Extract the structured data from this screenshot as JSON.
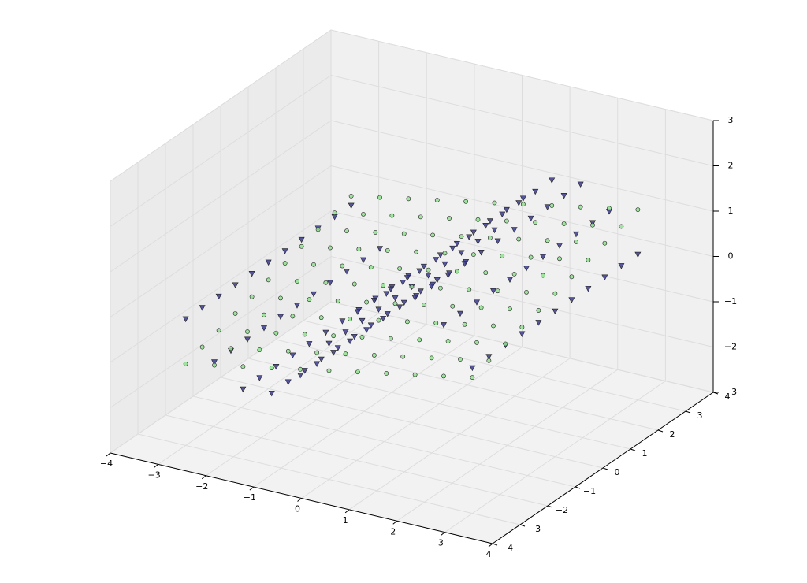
{
  "chart_data": {
    "type": "scatter3d",
    "xlim": [
      -4,
      4
    ],
    "ylim": [
      -4,
      4
    ],
    "zlim": [
      -3,
      3
    ],
    "xticks": [
      {
        "value": -4,
        "label": "−4"
      },
      {
        "value": -3,
        "label": "−3"
      },
      {
        "value": -2,
        "label": "−2"
      },
      {
        "value": -1,
        "label": "−1"
      },
      0,
      1,
      2,
      3,
      4
    ],
    "yticks": [
      {
        "value": -4,
        "label": "−4"
      },
      {
        "value": -3,
        "label": "−3"
      },
      {
        "value": -2,
        "label": "−2"
      },
      {
        "value": -1,
        "label": "−1"
      },
      0,
      1,
      2,
      3,
      4
    ],
    "zticks": [
      {
        "value": -3,
        "label": "−3"
      },
      {
        "value": -2,
        "label": "−2"
      },
      {
        "value": -1,
        "label": "−1"
      },
      0,
      1,
      2,
      3
    ],
    "grid": true,
    "x": [
      -3,
      -3,
      -3,
      -3,
      -3,
      -3,
      -3,
      -3,
      -3,
      -3,
      -3,
      -2.4,
      -2.4,
      -2.4,
      -2.4,
      -2.4,
      -2.4,
      -2.4,
      -2.4,
      -2.4,
      -2.4,
      -2.4,
      -1.8,
      -1.8,
      -1.8,
      -1.8,
      -1.8,
      -1.8,
      -1.8,
      -1.8,
      -1.8,
      -1.8,
      -1.8,
      -1.2,
      -1.2,
      -1.2,
      -1.2,
      -1.2,
      -1.2,
      -1.2,
      -1.2,
      -1.2,
      -1.2,
      -1.2,
      -0.6,
      -0.6,
      -0.6,
      -0.6,
      -0.6,
      -0.6,
      -0.6,
      -0.6,
      -0.6,
      -0.6,
      -0.6,
      0,
      0,
      0,
      0,
      0,
      0,
      0,
      0,
      0,
      0,
      0,
      0.6,
      0.6,
      0.6,
      0.6,
      0.6,
      0.6,
      0.6,
      0.6,
      0.6,
      0.6,
      0.6,
      1.2,
      1.2,
      1.2,
      1.2,
      1.2,
      1.2,
      1.2,
      1.2,
      1.2,
      1.2,
      1.2,
      1.8,
      1.8,
      1.8,
      1.8,
      1.8,
      1.8,
      1.8,
      1.8,
      1.8,
      1.8,
      1.8,
      2.4,
      2.4,
      2.4,
      2.4,
      2.4,
      2.4,
      2.4,
      2.4,
      2.4,
      2.4,
      2.4,
      3,
      3,
      3,
      3,
      3,
      3,
      3,
      3,
      3,
      3,
      3
    ],
    "y": [
      -3,
      -2.4,
      -1.8,
      -1.2,
      -0.6,
      0,
      0.6,
      1.2,
      1.8,
      2.4,
      3,
      -3,
      -2.4,
      -1.8,
      -1.2,
      -0.6,
      0,
      0.6,
      1.2,
      1.8,
      2.4,
      3,
      -3,
      -2.4,
      -1.8,
      -1.2,
      -0.6,
      0,
      0.6,
      1.2,
      1.8,
      2.4,
      3,
      -3,
      -2.4,
      -1.8,
      -1.2,
      -0.6,
      0,
      0.6,
      1.2,
      1.8,
      2.4,
      3,
      -3,
      -2.4,
      -1.8,
      -1.2,
      -0.6,
      0,
      0.6,
      1.2,
      1.8,
      2.4,
      3,
      -3,
      -2.4,
      -1.8,
      -1.2,
      -0.6,
      0,
      0.6,
      1.2,
      1.8,
      2.4,
      3,
      -3,
      -2.4,
      -1.8,
      -1.2,
      -0.6,
      0,
      0.6,
      1.2,
      1.8,
      2.4,
      3,
      -3,
      -2.4,
      -1.8,
      -1.2,
      -0.6,
      0,
      0.6,
      1.2,
      1.8,
      2.4,
      3,
      -3,
      -2.4,
      -1.8,
      -1.2,
      -0.6,
      0,
      0.6,
      1.2,
      1.8,
      2.4,
      3,
      -3,
      -2.4,
      -1.8,
      -1.2,
      -0.6,
      0,
      0.6,
      1.2,
      1.8,
      2.4,
      3,
      -3,
      -2.4,
      -1.8,
      -1.2,
      -0.6,
      0,
      0.6,
      1.2,
      1.8,
      2.4,
      3
    ],
    "series": [
      {
        "color": "#3a3a8c",
        "marker": "v",
        "z": [
          -0.21,
          -0.21,
          -0.21,
          -0.21,
          -0.21,
          -0.21,
          -0.21,
          -0.21,
          -0.21,
          -0.21,
          -0.21,
          -1.01,
          -1.01,
          -1.01,
          -1.01,
          -1.01,
          -1.01,
          -1.01,
          -1.01,
          -1.01,
          -1.01,
          -1.01,
          -1.46,
          -1.46,
          -1.46,
          -1.46,
          -1.46,
          -1.46,
          -1.46,
          -1.46,
          -1.46,
          -1.46,
          -1.46,
          -1.4,
          -1.4,
          -1.4,
          -1.4,
          -1.4,
          -1.4,
          -1.4,
          -1.4,
          -1.4,
          -1.4,
          -1.4,
          -0.85,
          -0.85,
          -0.85,
          -0.85,
          -0.85,
          -0.85,
          -0.85,
          -0.85,
          -0.85,
          -0.85,
          -0.85,
          0,
          0,
          0,
          0,
          0,
          0,
          0,
          0,
          0,
          0,
          0,
          0.85,
          0.85,
          0.85,
          0.85,
          0.85,
          0.85,
          0.85,
          0.85,
          0.85,
          0.85,
          0.85,
          1.4,
          1.4,
          1.4,
          1.4,
          1.4,
          1.4,
          1.4,
          1.4,
          1.4,
          1.4,
          1.4,
          1.46,
          1.46,
          1.46,
          1.46,
          1.46,
          1.46,
          1.46,
          1.46,
          1.46,
          1.46,
          1.46,
          1.01,
          1.01,
          1.01,
          1.01,
          1.01,
          1.01,
          1.01,
          1.01,
          1.01,
          1.01,
          1.01,
          0.21,
          0.21,
          0.21,
          0.21,
          0.21,
          0.21,
          0.21,
          0.21,
          0.21,
          0.21,
          0.21
        ]
      },
      {
        "color": "#90e090",
        "marker": "o",
        "z": [
          -1.2,
          -1.08,
          -0.96,
          -0.84,
          -0.72,
          -0.6,
          -0.48,
          -0.36,
          -0.24,
          -0.12,
          0,
          -1.08,
          -0.96,
          -0.84,
          -0.72,
          -0.6,
          -0.48,
          -0.36,
          -0.24,
          -0.12,
          0,
          0.12,
          -0.96,
          -0.84,
          -0.72,
          -0.6,
          -0.48,
          -0.36,
          -0.24,
          -0.12,
          0,
          0.12,
          0.24,
          -0.84,
          -0.72,
          -0.6,
          -0.48,
          -0.36,
          -0.24,
          -0.12,
          0,
          0.12,
          0.24,
          0.36,
          -0.72,
          -0.6,
          -0.48,
          -0.36,
          -0.24,
          -0.12,
          0,
          0.12,
          0.24,
          0.36,
          0.48,
          -0.6,
          -0.48,
          -0.36,
          -0.24,
          -0.12,
          0,
          0.12,
          0.24,
          0.36,
          0.48,
          0.6,
          -0.48,
          -0.36,
          -0.24,
          -0.12,
          0,
          0.12,
          0.24,
          0.36,
          0.48,
          0.6,
          0.72,
          -0.36,
          -0.24,
          -0.12,
          0,
          0.12,
          0.24,
          0.36,
          0.48,
          0.6,
          0.72,
          0.84,
          -0.24,
          -0.12,
          0,
          0.12,
          0.24,
          0.36,
          0.48,
          0.6,
          0.72,
          0.84,
          0.96,
          -0.12,
          0,
          0.12,
          0.24,
          0.36,
          0.48,
          0.6,
          0.72,
          0.84,
          0.96,
          1.08,
          0,
          0.12,
          0.24,
          0.36,
          0.48,
          0.6,
          0.72,
          0.84,
          0.96,
          1.08,
          1.2
        ]
      }
    ]
  }
}
